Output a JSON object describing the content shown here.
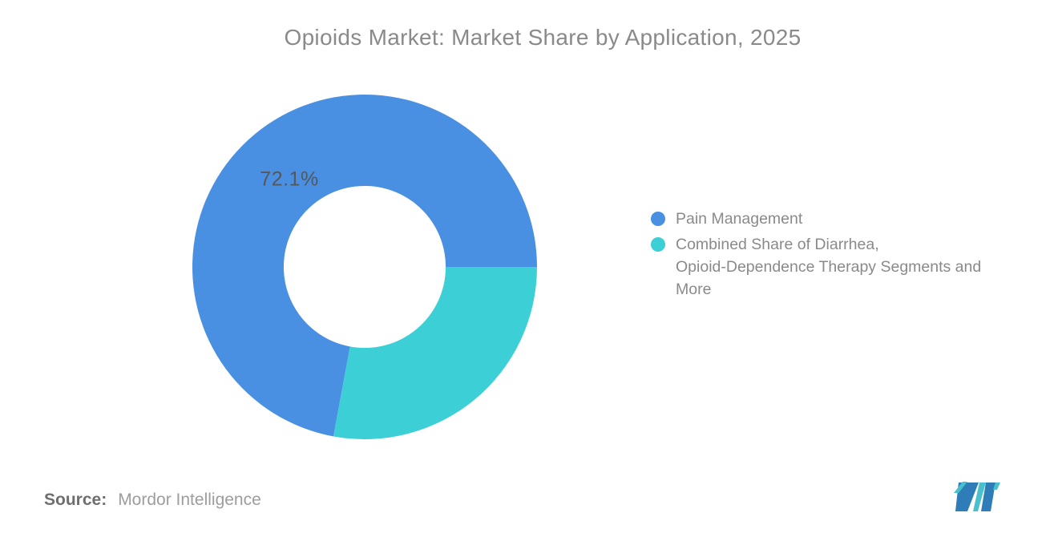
{
  "header": {
    "title": "Opioids Market: Market Share by Application, 2025"
  },
  "chart_data": {
    "type": "pie",
    "subtype": "donut",
    "title": "Opioids Market: Market Share by Application, 2025",
    "units": "percent",
    "series": [
      {
        "label": "Pain Management",
        "value": 72.1,
        "value_label": "72.1%",
        "color": "#4A90E2"
      },
      {
        "label": "Combined Share of Diarrhea, Opioid-Dependence Therapy Segments and More",
        "value": 27.9,
        "value_label": "",
        "color": "#3CCFD6"
      }
    ],
    "legend_position": "right",
    "inner_radius_ratio": 0.47,
    "rotation_deg": 190.44,
    "background": "#ffffff"
  },
  "legend": {
    "items": [
      {
        "lines": [
          "Pain Management"
        ],
        "color": "#4A90E2"
      },
      {
        "lines": [
          "Combined Share of Diarrhea,",
          "Opioid-Dependence Therapy Segments and",
          "More"
        ],
        "color": "#3CCFD6"
      }
    ]
  },
  "source": {
    "label": "Source:",
    "value": "Mordor Intelligence"
  },
  "logo": {
    "colors": {
      "blue": "#2E7CB8",
      "teal": "#49C0CC"
    }
  }
}
